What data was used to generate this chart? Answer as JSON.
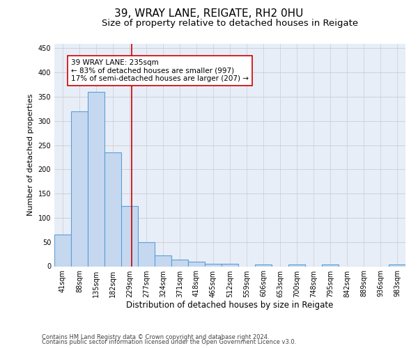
{
  "title1": "39, WRAY LANE, REIGATE, RH2 0HU",
  "title2": "Size of property relative to detached houses in Reigate",
  "xlabel": "Distribution of detached houses by size in Reigate",
  "ylabel": "Number of detached properties",
  "bar_values": [
    65,
    320,
    360,
    235,
    125,
    50,
    23,
    14,
    9,
    5,
    5,
    0,
    3,
    0,
    3,
    0,
    3,
    0,
    0,
    0,
    3
  ],
  "bin_labels": [
    "41sqm",
    "88sqm",
    "135sqm",
    "182sqm",
    "229sqm",
    "277sqm",
    "324sqm",
    "371sqm",
    "418sqm",
    "465sqm",
    "512sqm",
    "559sqm",
    "606sqm",
    "653sqm",
    "700sqm",
    "748sqm",
    "795sqm",
    "842sqm",
    "889sqm",
    "936sqm",
    "983sqm"
  ],
  "bar_facecolor": "#c5d8f0",
  "bar_edgecolor": "#5a9fd4",
  "bar_linewidth": 0.8,
  "grid_color": "#cccccc",
  "background_color": "#e8eef8",
  "red_line_x": 4.12,
  "red_line_color": "#cc0000",
  "annotation_line1": "39 WRAY LANE: 235sqm",
  "annotation_line2": "← 83% of detached houses are smaller (997)",
  "annotation_line3": "17% of semi-detached houses are larger (207) →",
  "annotation_box_color": "#ffffff",
  "annotation_box_edgecolor": "#cc0000",
  "footer1": "Contains HM Land Registry data © Crown copyright and database right 2024.",
  "footer2": "Contains public sector information licensed under the Open Government Licence v3.0.",
  "ylim": [
    0,
    460
  ],
  "yticks": [
    0,
    50,
    100,
    150,
    200,
    250,
    300,
    350,
    400,
    450
  ],
  "title1_fontsize": 11,
  "title2_fontsize": 9.5,
  "xlabel_fontsize": 8.5,
  "ylabel_fontsize": 8,
  "tick_fontsize": 7,
  "annotation_fontsize": 7.5,
  "footer_fontsize": 6
}
